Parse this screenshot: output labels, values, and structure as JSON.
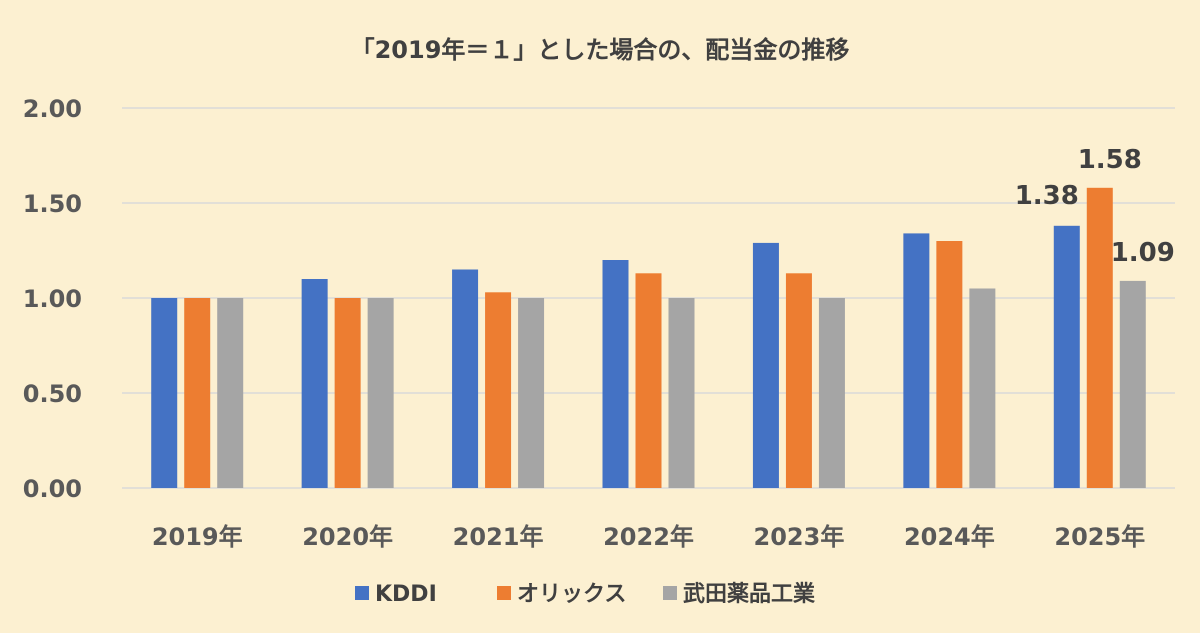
{
  "chart_data": {
    "type": "bar",
    "title": "「2019年＝１」とした場合の、配当金の推移",
    "categories": [
      "2019年",
      "2020年",
      "2021年",
      "2022年",
      "2023年",
      "2024年",
      "2025年"
    ],
    "series": [
      {
        "name": "KDDI",
        "color": "#4472c4",
        "values": [
          1.0,
          1.1,
          1.15,
          1.2,
          1.29,
          1.34,
          1.38
        ]
      },
      {
        "name": "オリックス",
        "color": "#ed7d31",
        "values": [
          1.0,
          1.0,
          1.03,
          1.13,
          1.13,
          1.3,
          1.58
        ]
      },
      {
        "name": "武田薬品工業",
        "color": "#a5a5a5",
        "values": [
          1.0,
          1.0,
          1.0,
          1.0,
          1.0,
          1.05,
          1.09
        ]
      }
    ],
    "ylim": [
      0,
      2
    ],
    "y_ticks": [
      "0.00",
      "0.50",
      "1.00",
      "1.50",
      "2.00"
    ],
    "y_tick_values": [
      0,
      0.5,
      1,
      1.5,
      2
    ],
    "data_labels": [
      {
        "series": 0,
        "category": 6,
        "text": "1.38"
      },
      {
        "series": 1,
        "category": 6,
        "text": "1.58"
      },
      {
        "series": 2,
        "category": 6,
        "text": "1.09"
      }
    ],
    "grid": true,
    "legend_position": "bottom"
  }
}
